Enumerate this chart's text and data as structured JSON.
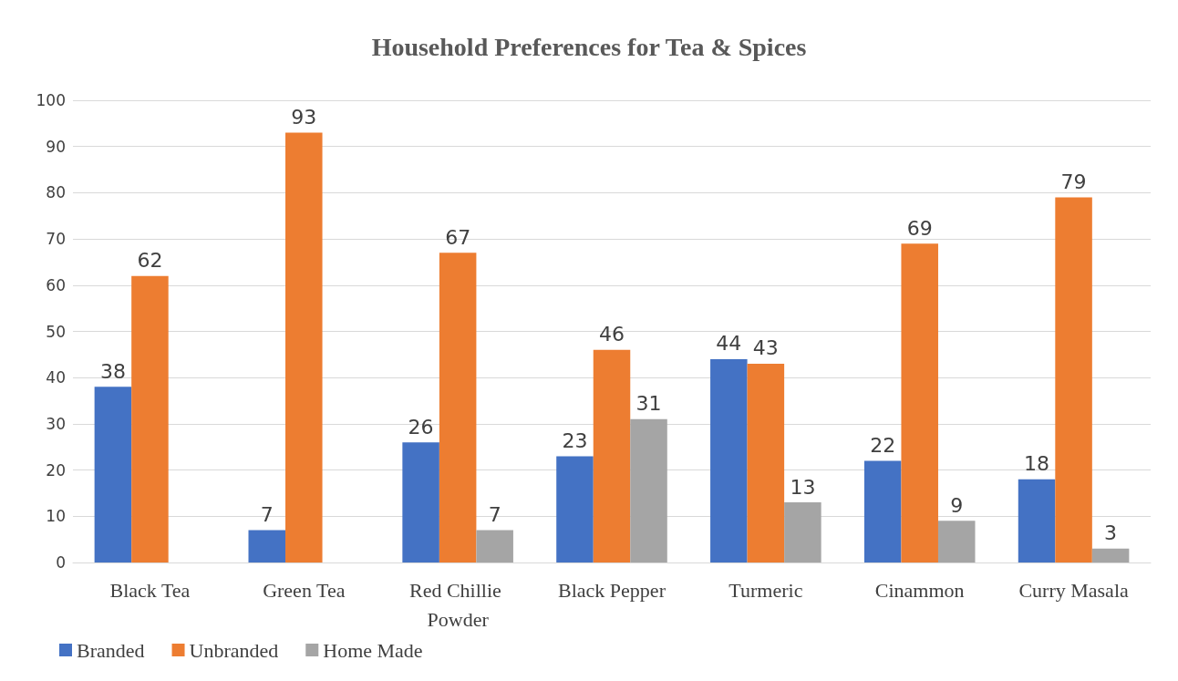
{
  "chart_data": {
    "type": "bar",
    "title": "Household Preferences for Tea & Spices",
    "categories": [
      "Black Tea",
      "Green Tea",
      "Red Chillie Powder",
      "Black Pepper",
      "Turmeric",
      "Cinammon",
      "Curry Masala"
    ],
    "series": [
      {
        "name": "Branded",
        "color": "#4472c4",
        "values": [
          38,
          7,
          26,
          23,
          44,
          22,
          18
        ]
      },
      {
        "name": "Unbranded",
        "color": "#ed7d31",
        "values": [
          62,
          93,
          67,
          46,
          43,
          69,
          79
        ]
      },
      {
        "name": "Home Made",
        "color": "#a5a5a5",
        "values": [
          null,
          null,
          7,
          31,
          13,
          9,
          3
        ]
      }
    ],
    "ylim": [
      0,
      100
    ],
    "yticks": [
      0,
      10,
      20,
      30,
      40,
      50,
      60,
      70,
      80,
      90,
      100
    ],
    "grid": "y",
    "legend": "bottom left",
    "data_labels": true
  }
}
